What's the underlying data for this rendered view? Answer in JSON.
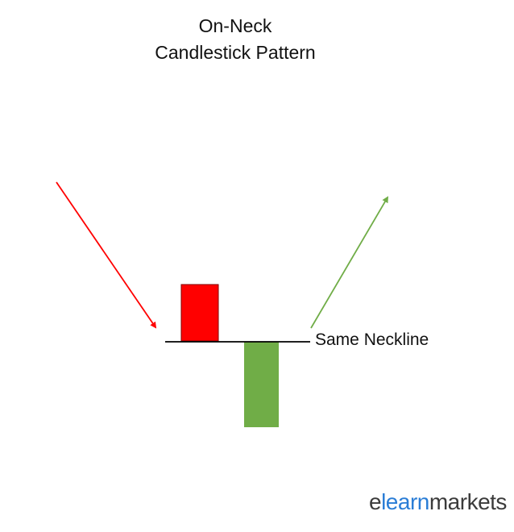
{
  "title": {
    "line1": "On-Neck",
    "line2": "Candlestick Pattern"
  },
  "neckline_label": "Same Neckline",
  "logo": {
    "part1": "e",
    "part2": "learn",
    "part3": "markets"
  },
  "colors": {
    "bearish": "#ff0000",
    "bullish": "#70ad47",
    "line": "#000000",
    "logo_text": "#3b3b3b",
    "logo_accent": "#2a7dd6"
  }
}
